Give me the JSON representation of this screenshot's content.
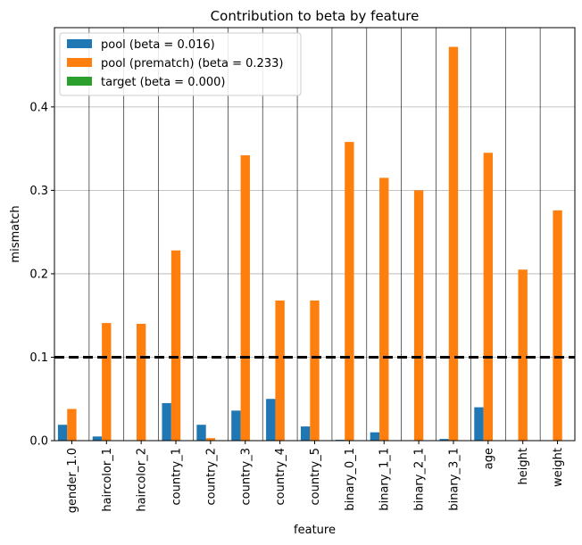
{
  "chart_data": {
    "type": "bar",
    "title": "Contribution to beta by feature",
    "xlabel": "feature",
    "ylabel": "mismatch",
    "categories": [
      "gender_1.0",
      "haircolor_1",
      "haircolor_2",
      "country_1",
      "country_2",
      "country_3",
      "country_4",
      "country_5",
      "binary_0_1",
      "binary_1_1",
      "binary_2_1",
      "binary_3_1",
      "age",
      "height",
      "weight"
    ],
    "series": [
      {
        "name": "pool (beta = 0.016)",
        "color": "#1f77b4",
        "values": [
          0.019,
          0.005,
          0.0,
          0.045,
          0.019,
          0.036,
          0.05,
          0.017,
          0.001,
          0.01,
          0.0,
          0.002,
          0.04,
          0.0,
          0.0
        ]
      },
      {
        "name": "pool (prematch) (beta = 0.233)",
        "color": "#ff7f0e",
        "values": [
          0.038,
          0.141,
          0.14,
          0.228,
          0.003,
          0.342,
          0.168,
          0.168,
          0.358,
          0.315,
          0.3,
          0.472,
          0.345,
          0.205,
          0.276
        ]
      },
      {
        "name": "target (beta = 0.000)",
        "color": "#2ca02c",
        "values": [
          0.0,
          0.0,
          0.0,
          0.0,
          0.0,
          0.0,
          0.0,
          0.0,
          0.0,
          0.0,
          0.0,
          0.0,
          0.0,
          0.0,
          0.0
        ]
      }
    ],
    "ylim": [
      0,
      0.495
    ],
    "yticks": [
      0.0,
      0.1,
      0.2,
      0.3,
      0.4
    ],
    "ytick_labels": [
      "0.0",
      "0.1",
      "0.2",
      "0.3",
      "0.4"
    ],
    "threshold": 0.1,
    "grid": "horizontal",
    "legend_position": "top-left"
  }
}
